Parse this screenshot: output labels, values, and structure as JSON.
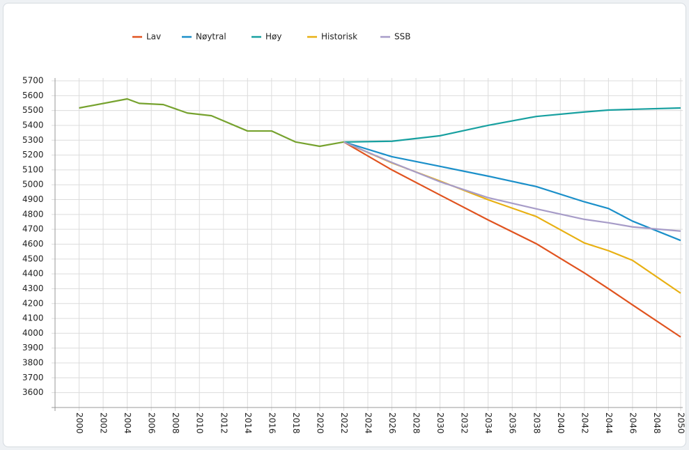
{
  "chart_data": {
    "type": "line",
    "history": {
      "color": "#76a22e",
      "x": [
        2000,
        2004,
        2005,
        2007,
        2009,
        2011,
        2014,
        2016,
        2018,
        2020,
        2022
      ],
      "values": [
        5517,
        5578,
        5548,
        5540,
        5483,
        5465,
        5362,
        5362,
        5288,
        5259,
        5288
      ]
    },
    "x": [
      2022,
      2026,
      2030,
      2034,
      2038,
      2042,
      2044,
      2046,
      2050
    ],
    "series": [
      {
        "name": "Lav",
        "color": "#e0531f",
        "values": [
          5288,
          5100,
          4931,
          4763,
          4603,
          4406,
          4300,
          4191,
          3975
        ]
      },
      {
        "name": "Nøytral",
        "color": "#1a8fc9",
        "values": [
          5288,
          5189,
          5124,
          5058,
          4988,
          4885,
          4840,
          4755,
          4625
        ]
      },
      {
        "name": "Høy",
        "color": "#17a0a0",
        "values": [
          5288,
          5293,
          5330,
          5400,
          5460,
          5490,
          5503,
          5508,
          5517
        ]
      },
      {
        "name": "Historisk",
        "color": "#e8b012",
        "values": [
          5288,
          5147,
          5025,
          4899,
          4786,
          4608,
          4556,
          4491,
          4270
        ]
      },
      {
        "name": "SSB",
        "color": "#a79cc8",
        "values": [
          5288,
          5150,
          5020,
          4913,
          4838,
          4767,
          4744,
          4716,
          4688
        ]
      }
    ],
    "xlim": [
      1998,
      2050
    ],
    "xticks": [
      2000,
      2002,
      2004,
      2006,
      2008,
      2010,
      2012,
      2014,
      2016,
      2018,
      2020,
      2022,
      2024,
      2026,
      2028,
      2030,
      2032,
      2034,
      2036,
      2038,
      2040,
      2042,
      2044,
      2046,
      2048,
      2050
    ],
    "ylim": [
      3500,
      5700
    ],
    "yticks": [
      3600,
      3700,
      3800,
      3900,
      4000,
      4100,
      4200,
      4300,
      4400,
      4500,
      4600,
      4700,
      4800,
      4900,
      5000,
      5100,
      5200,
      5300,
      5400,
      5500,
      5600,
      5700
    ],
    "grid": true
  }
}
